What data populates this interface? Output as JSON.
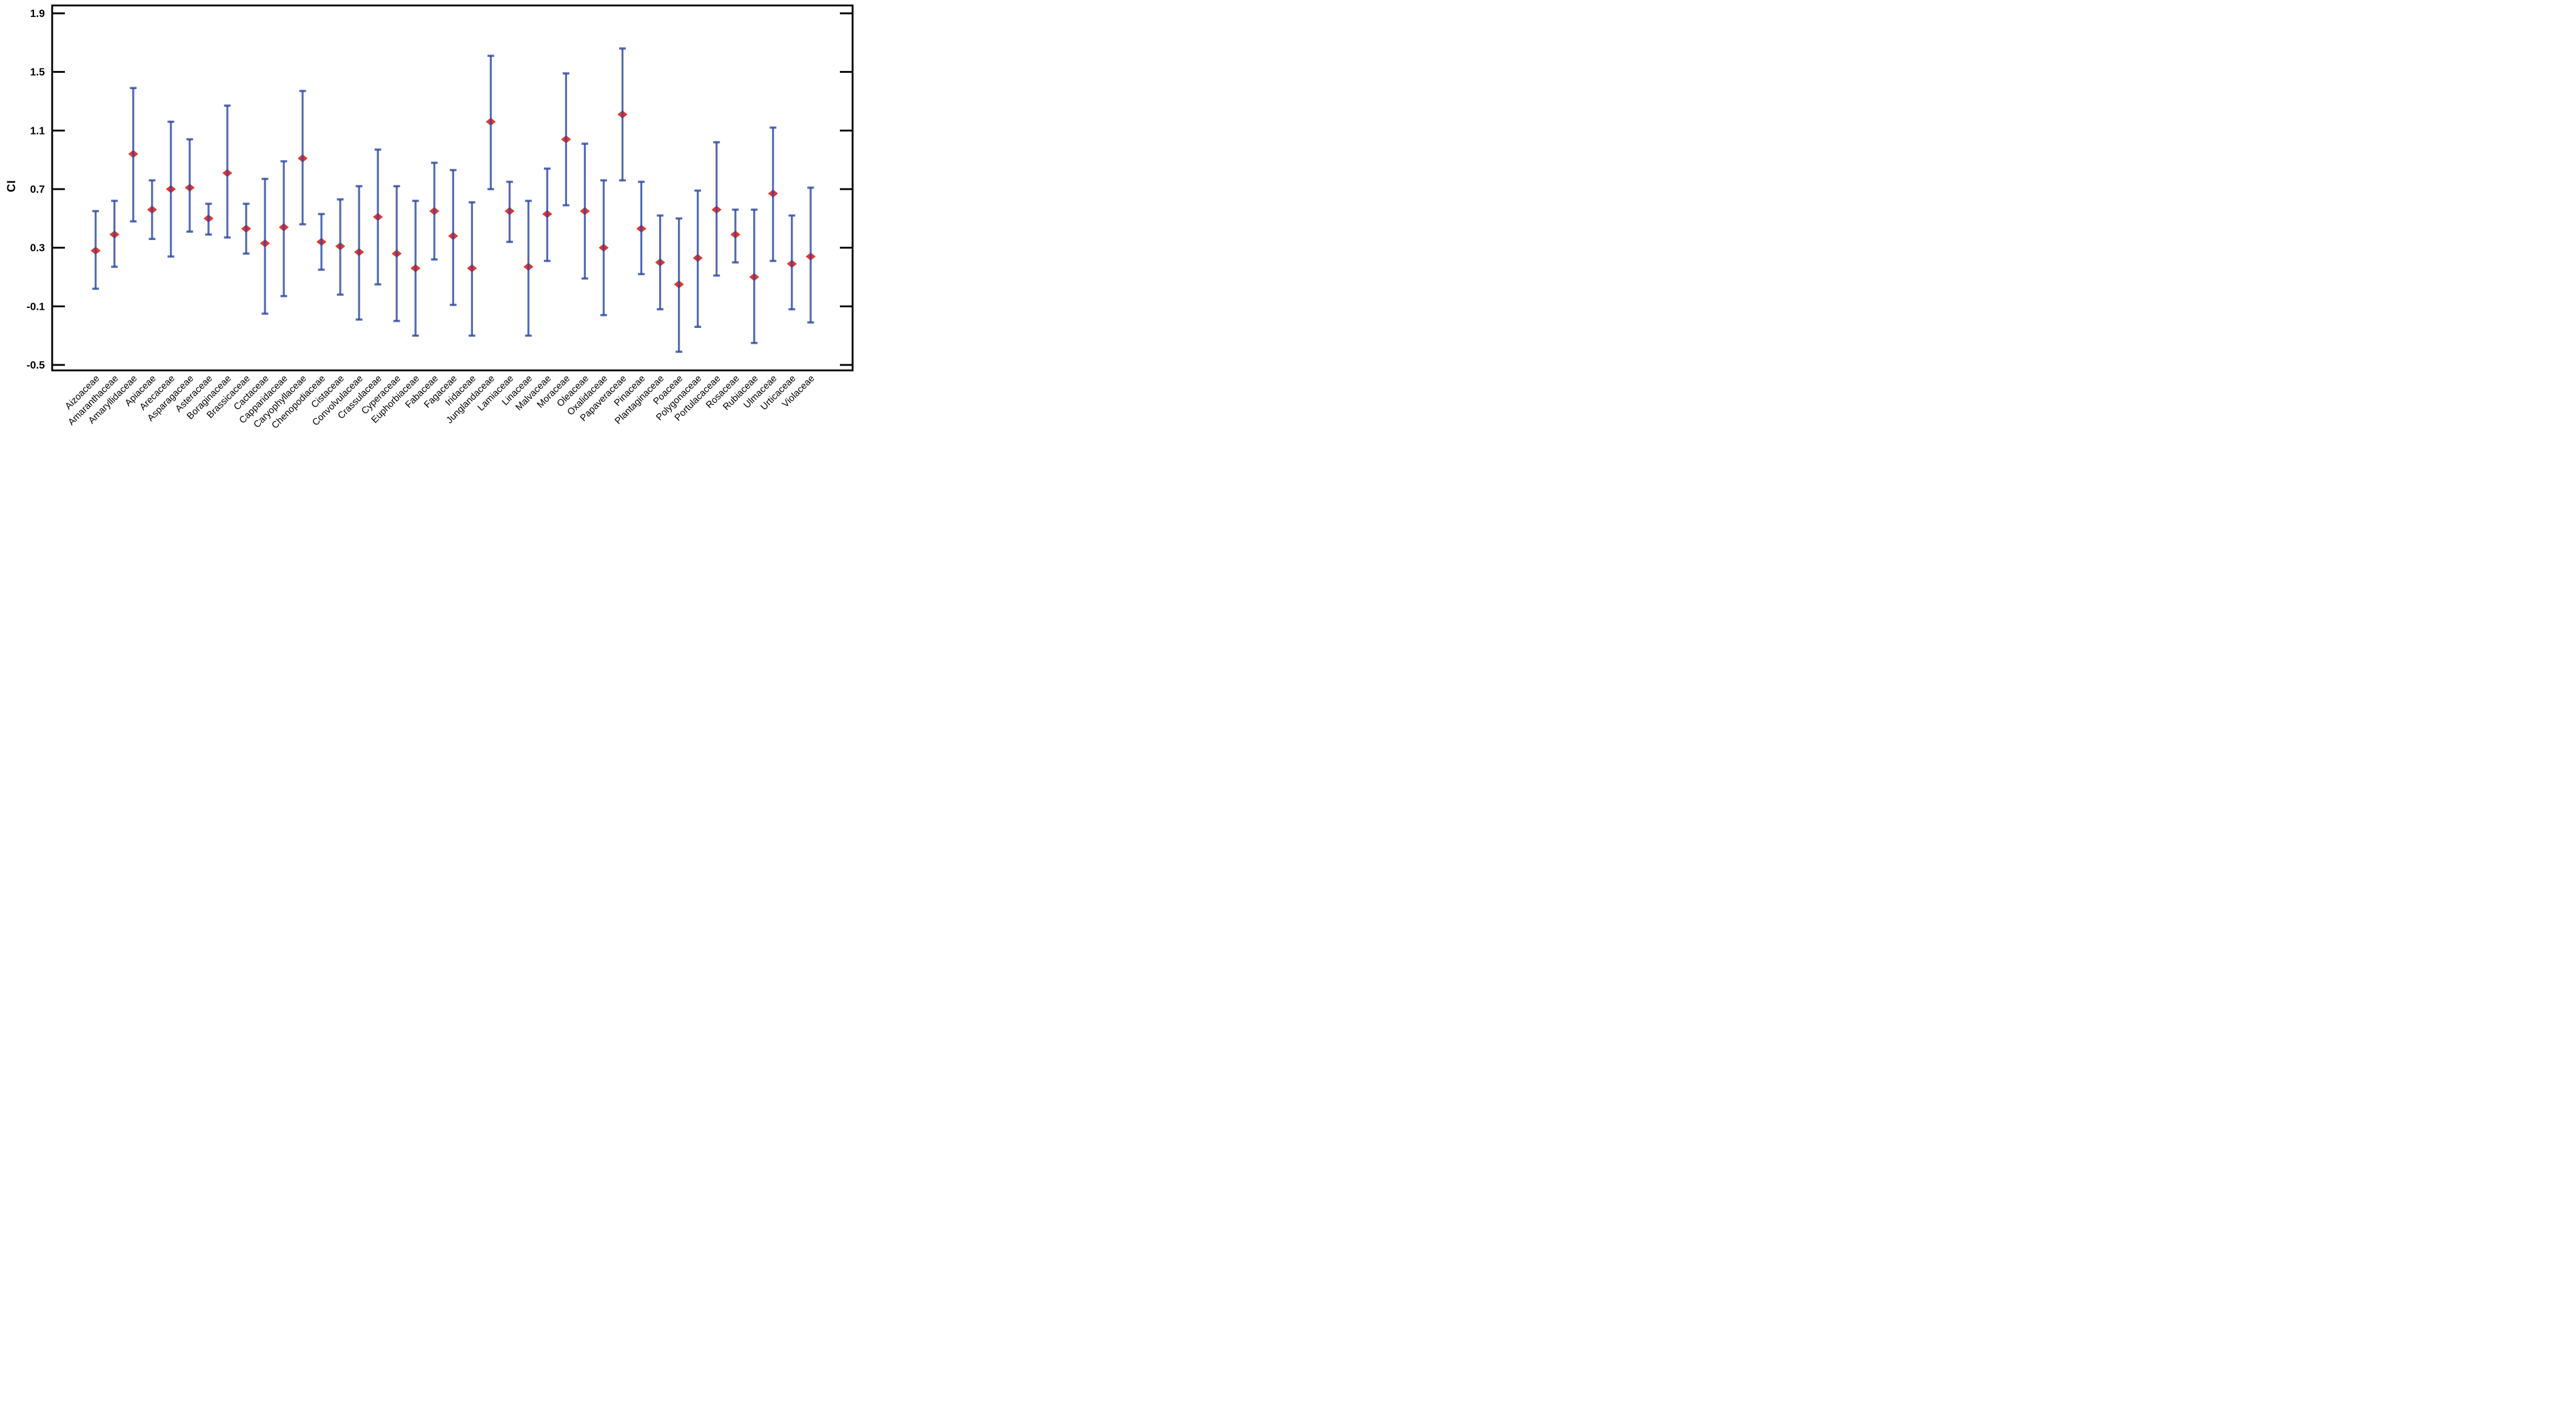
{
  "figure": {
    "background": "#ffffff",
    "axis_color": "#000000"
  },
  "chart_data": {
    "type": "scatter",
    "subtype": "errorbar",
    "title": "",
    "xlabel": "",
    "ylabel": "CI",
    "legend_position": "none",
    "grid": false,
    "ylim": [
      -0.54,
      1.96
    ],
    "yticks": [
      1.9,
      1.5,
      1.1,
      0.7,
      0.3,
      -0.1,
      -0.5
    ],
    "ytick_labels": [
      "1.9",
      "1.5",
      "1.1",
      "0.7",
      "0.3",
      "-0.1",
      "-0.5"
    ],
    "tick_direction": "in",
    "marker": "diamond",
    "marker_color": "#e8342b",
    "errorbar_color": "#2d4ba3",
    "errorbar_opacity": 0.82,
    "categories": [
      "Aizoaceae",
      "Amaranthaceae",
      "Amaryllidaceae",
      "Apiaceae",
      "Arecaceae",
      "Asparagaceae",
      "Asteraceae",
      "Boraginaceae",
      "Brassicaceae",
      "Cactaceae",
      "Capparidaceae",
      "Caryophyllaceae",
      "Chenopodiaceae",
      "Cistaceae",
      "Convolvulaceae",
      "Crassulaceae",
      "Cyperaceae",
      "Euphorbiaceae",
      "Fabaceae",
      "Fagaceae",
      "Iridaceae",
      "Junglandaceae",
      "Lamiaceae",
      "Linaceae",
      "Malvaceae",
      "Moraceae",
      "Oleaceae",
      "Oxalidaceae",
      "Papaveraceae",
      "Pinaceae",
      "Plantaginaceae",
      "Poaceae",
      "Polygonaceae",
      "Portulacaceae",
      "Rosaceae",
      "Rubiaceae",
      "Ulmaceae",
      "Urticaceae",
      "Violaceae"
    ],
    "series": [
      {
        "name": "CI",
        "values": [
          0.28,
          0.39,
          0.94,
          0.56,
          0.7,
          0.71,
          0.5,
          0.81,
          0.43,
          0.33,
          0.44,
          0.91,
          0.34,
          0.31,
          0.27,
          0.51,
          0.26,
          0.16,
          0.55,
          0.38,
          0.16,
          1.16,
          0.55,
          0.17,
          0.53,
          1.04,
          0.55,
          0.3,
          1.21,
          0.43,
          0.2,
          0.05,
          0.23,
          0.56,
          0.39,
          0.1,
          0.67,
          0.19,
          0.24
        ],
        "lower": [
          0.02,
          0.17,
          0.48,
          0.36,
          0.24,
          0.41,
          0.39,
          0.37,
          0.26,
          -0.15,
          -0.03,
          0.46,
          0.15,
          -0.02,
          -0.19,
          0.05,
          -0.2,
          -0.3,
          0.22,
          -0.09,
          -0.3,
          0.7,
          0.34,
          -0.3,
          0.21,
          0.59,
          0.09,
          -0.16,
          0.76,
          0.12,
          -0.12,
          -0.41,
          -0.24,
          0.11,
          0.2,
          -0.35,
          0.21,
          -0.12,
          -0.21
        ],
        "upper": [
          0.55,
          0.62,
          1.39,
          0.76,
          1.16,
          1.04,
          0.6,
          1.27,
          0.6,
          0.77,
          0.89,
          1.37,
          0.53,
          0.63,
          0.72,
          0.97,
          0.72,
          0.62,
          0.88,
          0.83,
          0.61,
          1.61,
          0.75,
          0.62,
          0.84,
          1.49,
          1.01,
          0.76,
          1.66,
          0.75,
          0.52,
          0.5,
          0.69,
          1.02,
          0.56,
          0.56,
          1.12,
          0.52,
          0.71
        ]
      }
    ]
  }
}
